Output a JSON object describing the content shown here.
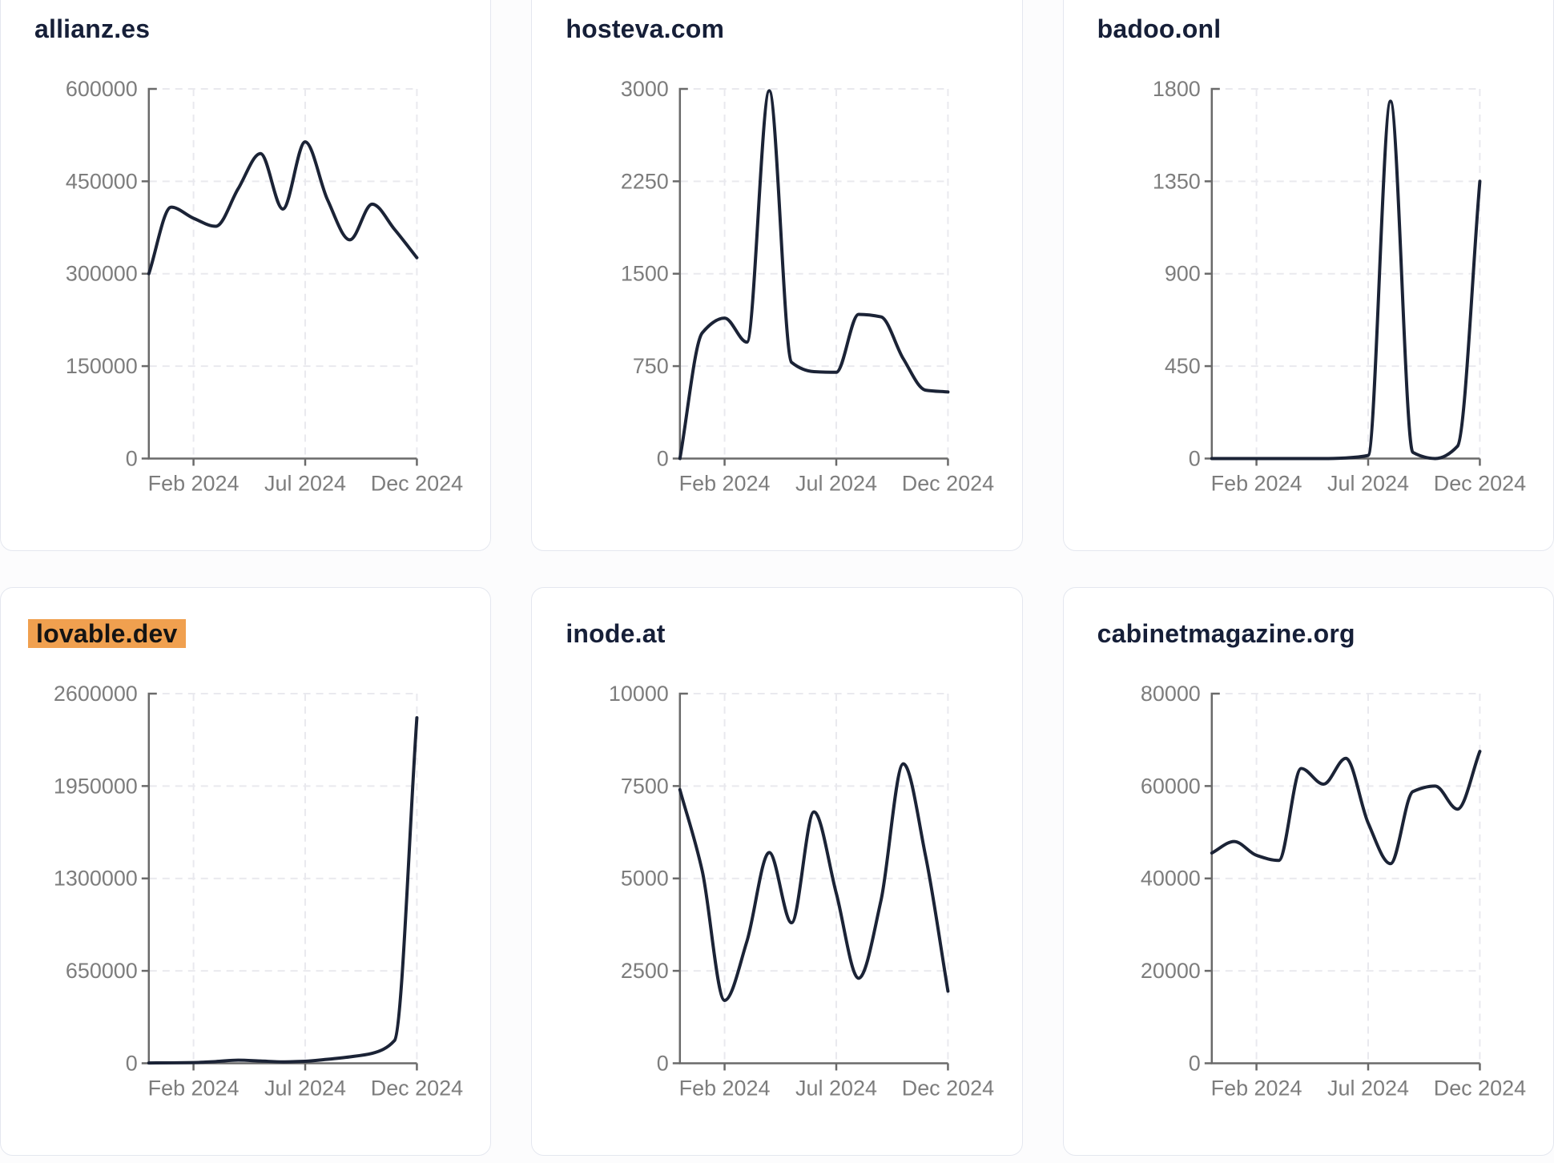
{
  "ui": {
    "colors": {
      "page_background": "#fcfcfd",
      "card_background": "#ffffff",
      "card_border": "#e4e7ef",
      "title_text": "#161f38",
      "title_highlight_background": "#f0a04f",
      "title_highlight_text": "#141414",
      "trend_line": "#1b2336",
      "axis_line": "#6a6a6a",
      "tick_label": "#7d7d7d",
      "gridline": "#e9e9ee"
    },
    "x_tick_labels": [
      "Feb 2024",
      "Jul 2024",
      "Dec 2024"
    ]
  },
  "chart_data": [
    {
      "type": "line",
      "title": "allianz.es",
      "title_highlighted": false,
      "x": [
        "Dec 2023",
        "Jan 2024",
        "Feb 2024",
        "Mar 2024",
        "Apr 2024",
        "May 2024",
        "Jun 2024",
        "Jul 2024",
        "Aug 2024",
        "Sep 2024",
        "Oct 2024",
        "Nov 2024",
        "Dec 2024"
      ],
      "values": [
        300000,
        408000,
        390000,
        377000,
        438000,
        495000,
        405000,
        514000,
        420000,
        355000,
        413000,
        372000,
        326000
      ],
      "ylim": [
        0,
        600000
      ],
      "y_ticks": [
        0,
        150000,
        300000,
        450000,
        600000
      ],
      "x_tick_labels": [
        "Feb 2024",
        "Jul 2024",
        "Dec 2024"
      ],
      "x_tick_indices": [
        2,
        7,
        12
      ],
      "grid": "dashed",
      "legend": "none"
    },
    {
      "type": "line",
      "title": "hosteva.com",
      "title_highlighted": false,
      "x": [
        "Dec 2023",
        "Jan 2024",
        "Feb 2024",
        "Mar 2024",
        "Apr 2024",
        "May 2024",
        "Jun 2024",
        "Jul 2024",
        "Aug 2024",
        "Sep 2024",
        "Oct 2024",
        "Nov 2024",
        "Dec 2024"
      ],
      "values": [
        0,
        1020,
        1140,
        945,
        2985,
        780,
        705,
        700,
        1170,
        1150,
        810,
        555,
        540
      ],
      "ylim": [
        0,
        3000
      ],
      "y_ticks": [
        0,
        750,
        1500,
        2250,
        3000
      ],
      "x_tick_labels": [
        "Feb 2024",
        "Jul 2024",
        "Dec 2024"
      ],
      "x_tick_indices": [
        2,
        7,
        12
      ],
      "grid": "dashed",
      "legend": "none"
    },
    {
      "type": "line",
      "title": "badoo.onl",
      "title_highlighted": false,
      "x": [
        "Dec 2023",
        "Jan 2024",
        "Feb 2024",
        "Mar 2024",
        "Apr 2024",
        "May 2024",
        "Jun 2024",
        "Jul 2024",
        "Aug 2024",
        "Sep 2024",
        "Oct 2024",
        "Nov 2024",
        "Dec 2024"
      ],
      "values": [
        0,
        0,
        0,
        0,
        0,
        0,
        3,
        15,
        1740,
        30,
        0,
        60,
        1350
      ],
      "ylim": [
        0,
        1800
      ],
      "y_ticks": [
        0,
        450,
        900,
        1350,
        1800
      ],
      "x_tick_labels": [
        "Feb 2024",
        "Jul 2024",
        "Dec 2024"
      ],
      "x_tick_indices": [
        2,
        7,
        12
      ],
      "grid": "dashed",
      "legend": "none"
    },
    {
      "type": "line",
      "title": "lovable.dev",
      "title_highlighted": true,
      "x": [
        "Dec 2023",
        "Jan 2024",
        "Feb 2024",
        "Mar 2024",
        "Apr 2024",
        "May 2024",
        "Jun 2024",
        "Jul 2024",
        "Aug 2024",
        "Sep 2024",
        "Oct 2024",
        "Nov 2024",
        "Dec 2024"
      ],
      "values": [
        2000,
        3000,
        5000,
        12000,
        22000,
        16000,
        10000,
        14000,
        28000,
        45000,
        70000,
        160000,
        2430000
      ],
      "ylim": [
        0,
        2600000
      ],
      "y_ticks": [
        0,
        650000,
        1300000,
        1950000,
        2600000
      ],
      "x_tick_labels": [
        "Feb 2024",
        "Jul 2024",
        "Dec 2024"
      ],
      "x_tick_indices": [
        2,
        7,
        12
      ],
      "grid": "dashed",
      "legend": "none"
    },
    {
      "type": "line",
      "title": "inode.at",
      "title_highlighted": false,
      "x": [
        "Dec 2023",
        "Jan 2024",
        "Feb 2024",
        "Mar 2024",
        "Apr 2024",
        "May 2024",
        "Jun 2024",
        "Jul 2024",
        "Aug 2024",
        "Sep 2024",
        "Oct 2024",
        "Nov 2024",
        "Dec 2024"
      ],
      "values": [
        7400,
        5200,
        1700,
        3300,
        5700,
        3800,
        6800,
        4600,
        2300,
        4400,
        8100,
        5600,
        1950
      ],
      "ylim": [
        0,
        10000
      ],
      "y_ticks": [
        0,
        2500,
        5000,
        7500,
        10000
      ],
      "x_tick_labels": [
        "Feb 2024",
        "Jul 2024",
        "Dec 2024"
      ],
      "x_tick_indices": [
        2,
        7,
        12
      ],
      "grid": "dashed",
      "legend": "none"
    },
    {
      "type": "line",
      "title": "cabinetmagazine.org",
      "title_highlighted": false,
      "x": [
        "Dec 2023",
        "Jan 2024",
        "Feb 2024",
        "Mar 2024",
        "Apr 2024",
        "May 2024",
        "Jun 2024",
        "Jul 2024",
        "Aug 2024",
        "Sep 2024",
        "Oct 2024",
        "Nov 2024",
        "Dec 2024"
      ],
      "values": [
        45500,
        48000,
        45000,
        43900,
        63800,
        60400,
        66000,
        52000,
        43200,
        58800,
        60000,
        55000,
        67500
      ],
      "ylim": [
        0,
        80000
      ],
      "y_ticks": [
        0,
        20000,
        40000,
        60000,
        80000
      ],
      "x_tick_labels": [
        "Feb 2024",
        "Jul 2024",
        "Dec 2024"
      ],
      "x_tick_indices": [
        2,
        7,
        12
      ],
      "grid": "dashed",
      "legend": "none"
    }
  ]
}
